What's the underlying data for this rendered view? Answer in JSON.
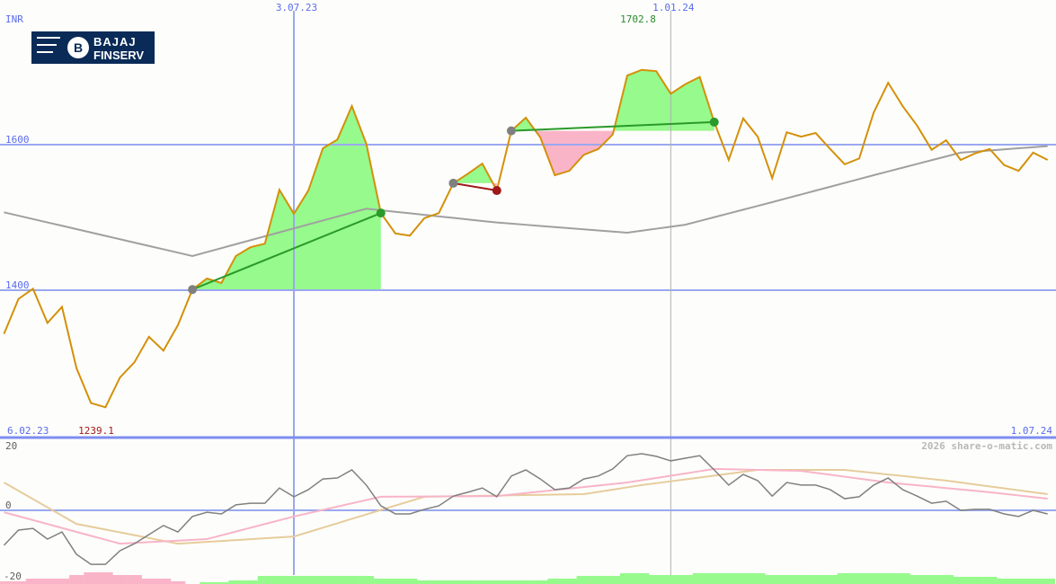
{
  "chart_data": [
    {
      "type": "line",
      "currency_label": "INR",
      "x": [
        "2023-02-13",
        "2023-02-20",
        "2023-02-27",
        "2023-03-06",
        "2023-03-13",
        "2023-03-20",
        "2023-03-27",
        "2023-04-03",
        "2023-04-10",
        "2023-04-17",
        "2023-04-24",
        "2023-05-01",
        "2023-05-08",
        "2023-05-15",
        "2023-05-22",
        "2023-05-29",
        "2023-06-05",
        "2023-06-12",
        "2023-06-19",
        "2023-06-26",
        "2023-07-03",
        "2023-07-10",
        "2023-07-17",
        "2023-07-24",
        "2023-07-31",
        "2023-08-07",
        "2023-08-14",
        "2023-08-21",
        "2023-08-28",
        "2023-09-04",
        "2023-09-11",
        "2023-09-18",
        "2023-09-25",
        "2023-10-02",
        "2023-10-09",
        "2023-10-16",
        "2023-10-23",
        "2023-10-30",
        "2023-11-06",
        "2023-11-13",
        "2023-11-20",
        "2023-11-27",
        "2023-12-04",
        "2023-12-11",
        "2023-12-18",
        "2023-12-25",
        "2024-01-01",
        "2024-01-08",
        "2024-01-15",
        "2024-01-22",
        "2024-01-29",
        "2024-02-05",
        "2024-02-12",
        "2024-02-19",
        "2024-02-26",
        "2024-03-04",
        "2024-03-11",
        "2024-03-18",
        "2024-03-25",
        "2024-04-01",
        "2024-04-08",
        "2024-04-15",
        "2024-04-22",
        "2024-04-29",
        "2024-05-06",
        "2024-05-13",
        "2024-05-20",
        "2024-05-27",
        "2024-06-03",
        "2024-06-10",
        "2024-06-17",
        "2024-06-24",
        "2024-07-01"
      ],
      "series": [
        {
          "role": "price",
          "color": "#d4900a",
          "values": [
            1340,
            1388,
            1402,
            1355,
            1377,
            1293,
            1245,
            1239.1,
            1280,
            1301,
            1336,
            1317,
            1352,
            1401,
            1416,
            1410,
            1447,
            1459,
            1464,
            1538,
            1505,
            1537,
            1595,
            1607,
            1653,
            1601,
            1506,
            1478,
            1475,
            1499,
            1506,
            1547,
            1560,
            1574,
            1537,
            1619,
            1637,
            1610,
            1558,
            1564,
            1586,
            1594,
            1614,
            1695,
            1702.8,
            1701,
            1670,
            1683,
            1693,
            1631,
            1579,
            1636,
            1611,
            1554,
            1617,
            1611,
            1616,
            1594,
            1573,
            1581,
            1644,
            1685,
            1653,
            1626,
            1593,
            1606,
            1579,
            1588,
            1594,
            1572,
            1564,
            1589,
            1579
          ]
        },
        {
          "role": "moving-average",
          "color": "#a0a0a0",
          "knots": [
            [
              "2023-02-13",
              1507
            ],
            [
              "2023-05-15",
              1447
            ],
            [
              "2023-08-07",
              1512
            ],
            [
              "2023-10-09",
              1493
            ],
            [
              "2023-12-11",
              1479
            ],
            [
              "2024-01-08",
              1490
            ],
            [
              "2024-02-19",
              1521
            ],
            [
              "2024-04-08",
              1558
            ],
            [
              "2024-05-20",
              1589
            ],
            [
              "2024-07-01",
              1598
            ]
          ]
        }
      ],
      "trend_segments": [
        {
          "from": "2023-05-15",
          "to": "2023-08-14",
          "direction": "up",
          "color": "#2a9a2a"
        },
        {
          "from": "2023-09-18",
          "to": "2023-10-09",
          "direction": "down",
          "color": "#a01818"
        },
        {
          "from": "2023-10-16",
          "to": "2024-01-22",
          "direction": "up",
          "color": "#2a9a2a"
        }
      ],
      "fill_colors": {
        "above": "#96fa8c",
        "below": "#fab4c8"
      },
      "y_ticks": [
        {
          "value": 1600,
          "label": "1600"
        },
        {
          "value": 1400,
          "label": "1400"
        }
      ],
      "x_ticks": [
        {
          "date": "2023-07-03",
          "label": "3.07.23",
          "color": "#9aa8f0"
        },
        {
          "date": "2024-01-01",
          "label": "1.01.24",
          "color": "#b0b0b0"
        }
      ],
      "range_labels": {
        "start": "6.02.23",
        "end": "1.07.24"
      },
      "max": {
        "value": 1702.8,
        "label": "1702.8",
        "date": "2023-12-18",
        "color": "#2a8a2a"
      },
      "min": {
        "value": 1239.1,
        "label": "1239.1",
        "date": "2023-04-03",
        "color": "#a01818"
      },
      "grid": true
    },
    {
      "type": "line",
      "ylim": [
        -20,
        20
      ],
      "y_ticks": [
        {
          "value": 20,
          "label": "20"
        },
        {
          "value": 0,
          "label": "0"
        },
        {
          "value": -20,
          "label": "-20"
        }
      ],
      "series": [
        {
          "role": "oscillator",
          "color": "#808080",
          "values": [
            -10.8,
            -6.1,
            -5.6,
            -8.9,
            -6.7,
            -13.6,
            -16.7,
            -16.7,
            -12.5,
            -10.3,
            -7.5,
            -4.7,
            -6.7,
            -1.9,
            -0.6,
            -1.1,
            1.7,
            2.2,
            2.2,
            6.9,
            4.2,
            6.4,
            9.7,
            10,
            12.5,
            7.8,
            1.4,
            -1.1,
            -1.1,
            0.3,
            1.4,
            4.4,
            5.6,
            6.9,
            4.2,
            10.6,
            12.5,
            9.7,
            6.4,
            6.9,
            9.7,
            10.6,
            12.8,
            16.9,
            17.5,
            16.7,
            15.3,
            16.1,
            16.9,
            12.5,
            7.8,
            11.1,
            9.2,
            4.4,
            8.6,
            7.8,
            7.8,
            6.4,
            3.6,
            4.2,
            7.8,
            10,
            6.4,
            4.4,
            2.2,
            2.8,
            0,
            0.3,
            0.3,
            -1.1,
            -1.9,
            0,
            -1.1
          ]
        },
        {
          "role": "signal-fast",
          "color": "#f8b4c8",
          "knots": [
            [
              "2023-02-13",
              -0.6
            ],
            [
              "2023-04-10",
              -10.3
            ],
            [
              "2023-05-22",
              -8.9
            ],
            [
              "2023-07-03",
              -1.9
            ],
            [
              "2023-08-14",
              4.2
            ],
            [
              "2023-10-09",
              4.4
            ],
            [
              "2023-12-11",
              8.6
            ],
            [
              "2024-01-22",
              12.8
            ],
            [
              "2024-03-04",
              12.2
            ],
            [
              "2024-04-15",
              8.6
            ],
            [
              "2024-06-03",
              5.6
            ],
            [
              "2024-07-01",
              3.6
            ]
          ]
        },
        {
          "role": "signal-slow",
          "color": "#e6cc9c",
          "knots": [
            [
              "2023-02-13",
              8.6
            ],
            [
              "2023-03-20",
              -4.2
            ],
            [
              "2023-05-08",
              -10.3
            ],
            [
              "2023-07-03",
              -8.1
            ],
            [
              "2023-09-04",
              4.2
            ],
            [
              "2023-11-20",
              5
            ],
            [
              "2023-12-18",
              7.8
            ],
            [
              "2024-02-12",
              12.5
            ],
            [
              "2024-03-25",
              12.5
            ],
            [
              "2024-05-13",
              9.2
            ],
            [
              "2024-07-01",
              5
            ]
          ]
        }
      ],
      "histogram": {
        "color_pos": "#96fa8c",
        "color_neg": "#fab4c8",
        "values": [
          -3,
          -3,
          -6,
          -6,
          -6,
          -10,
          -13,
          -13,
          -10,
          -10,
          -6,
          -6,
          -3,
          0,
          2,
          2,
          4,
          4,
          9,
          9,
          9,
          9,
          9,
          9,
          9,
          9,
          6,
          6,
          6,
          4,
          4,
          4,
          4,
          4,
          4,
          4,
          4,
          4,
          6,
          6,
          9,
          9,
          9,
          12,
          12,
          10,
          10,
          10,
          12,
          12,
          12,
          12,
          12,
          10,
          10,
          10,
          10,
          10,
          12,
          12,
          12,
          12,
          12,
          10,
          10,
          10,
          8,
          8,
          8,
          6,
          6,
          6,
          6
        ]
      }
    }
  ],
  "logo": {
    "text_top": "BAJAJ",
    "text_bottom": "FINSERV"
  },
  "watermark": "2026 share-o-matic.com"
}
